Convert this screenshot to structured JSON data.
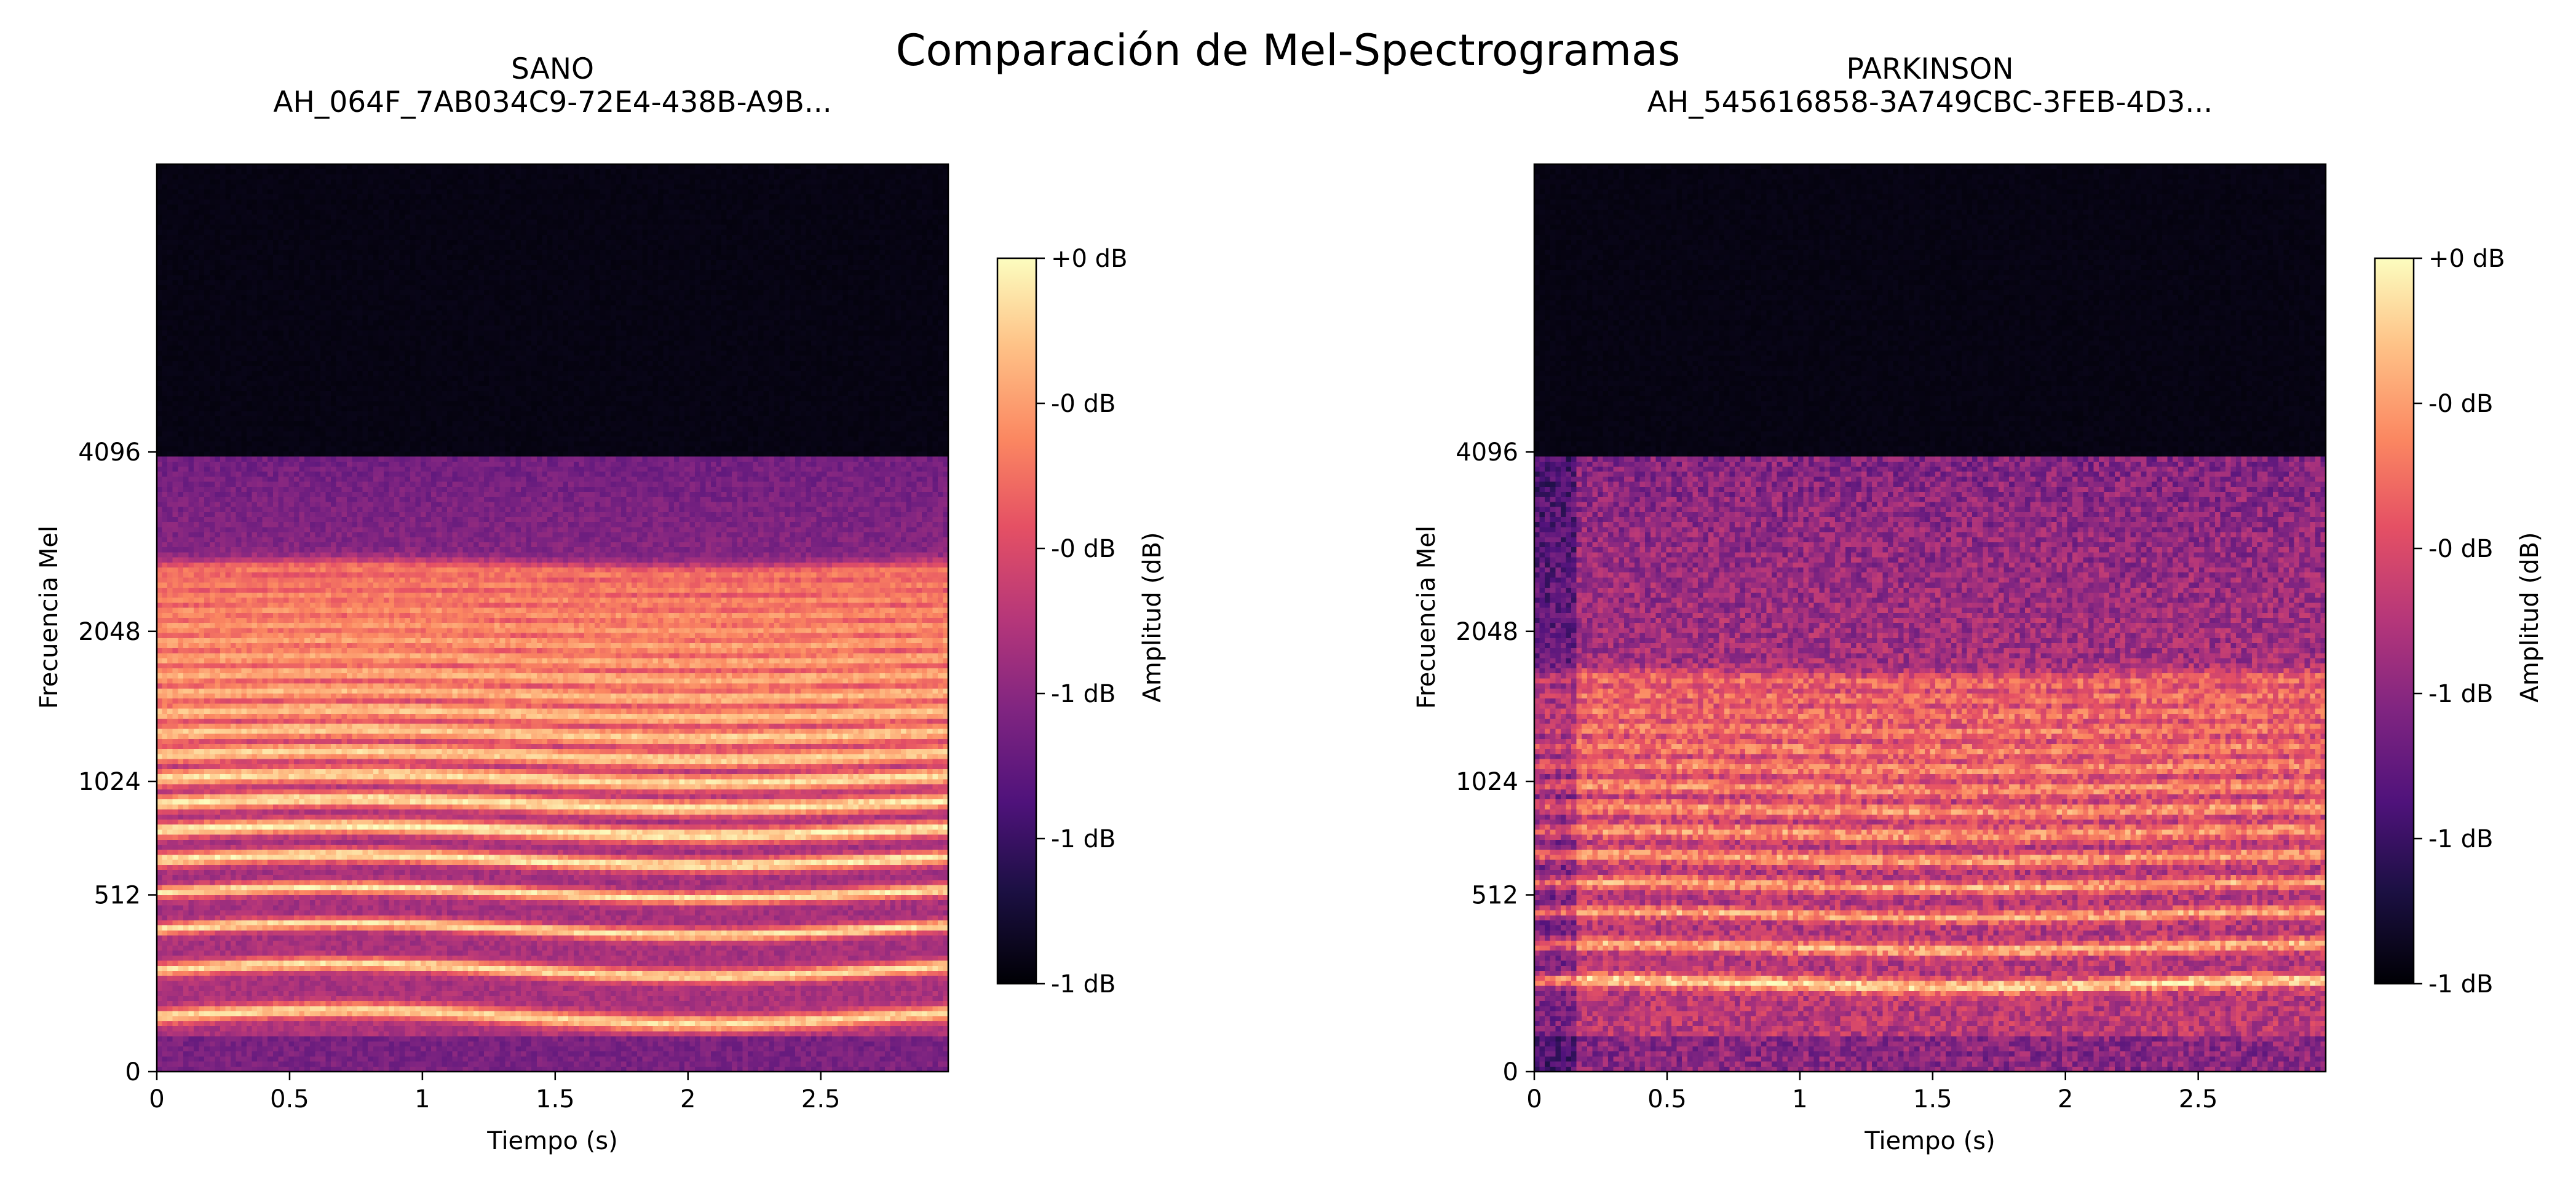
{
  "figure_title": "Comparación de Mel-Spectrogramas",
  "chart_data": [
    {
      "type": "heatmap",
      "title": "SANO\nAH_064F_7AB034C9-72E4-438B-A9B...",
      "title_line1": "SANO",
      "title_line2": "AH_064F_7AB034C9-72E4-438B-A9B...",
      "xlabel": "Tiempo (s)",
      "ylabel": "Frecuencia Mel",
      "colorbar_label": "Amplitud (dB)",
      "colormap": "magma",
      "xlim": [
        0,
        2.98
      ],
      "x_ticks": [
        0,
        0.5,
        1,
        1.5,
        2,
        2.5
      ],
      "x_tick_labels": [
        "0",
        "0.5",
        "1",
        "1.5",
        "2",
        "2.5"
      ],
      "y_scale": "mel",
      "y_ticks": [
        0,
        512,
        1024,
        2048,
        4096
      ],
      "y_tick_labels": [
        "0",
        "512",
        "1024",
        "2048",
        "4096"
      ],
      "colorbar_tick_labels": [
        "+0 dB",
        "-0 dB",
        "-0 dB",
        "-1 dB",
        "-1 dB",
        "-1 dB"
      ],
      "colorbar_range": [
        -1,
        0
      ],
      "harmonic_bands_hz": [
        130,
        260,
        390,
        520,
        650,
        780,
        910,
        1040,
        1170,
        1300,
        1430,
        1560,
        1690,
        1820,
        1950,
        2080,
        2210,
        2340,
        2470,
        2600
      ],
      "energy_cutoff_hz": 4000,
      "notes": "strong regular harmonic stripes; brightest bands near 650-800 Hz"
    },
    {
      "type": "heatmap",
      "title": "PARKINSON\nAH_545616858-3A749CBC-3FEB-4D3...",
      "title_line1": "PARKINSON",
      "title_line2": "AH_545616858-3A749CBC-3FEB-4D3...",
      "xlabel": "Tiempo (s)",
      "ylabel": "Frecuencia Mel",
      "colorbar_label": "Amplitud (dB)",
      "colormap": "magma",
      "xlim": [
        0,
        2.98
      ],
      "x_ticks": [
        0,
        0.5,
        1,
        1.5,
        2,
        2.5
      ],
      "x_tick_labels": [
        "0",
        "0.5",
        "1",
        "1.5",
        "2",
        "2.5"
      ],
      "y_scale": "mel",
      "y_ticks": [
        0,
        512,
        1024,
        2048,
        4096
      ],
      "y_tick_labels": [
        "0",
        "512",
        "1024",
        "2048",
        "4096"
      ],
      "colorbar_tick_labels": [
        "+0 dB",
        "-0 dB",
        "-0 dB",
        "-1 dB",
        "-1 dB",
        "-1 dB"
      ],
      "colorbar_range": [
        -1,
        0
      ],
      "harmonic_bands_hz": [
        220,
        330,
        440,
        550,
        660,
        770,
        880,
        990,
        1100,
        1210,
        1320,
        1430,
        1540,
        1650
      ],
      "energy_cutoff_hz": 4000,
      "notes": "weaker, noisier harmonics; dark onset before ~0.15 s; brightest band near 230 Hz"
    }
  ]
}
